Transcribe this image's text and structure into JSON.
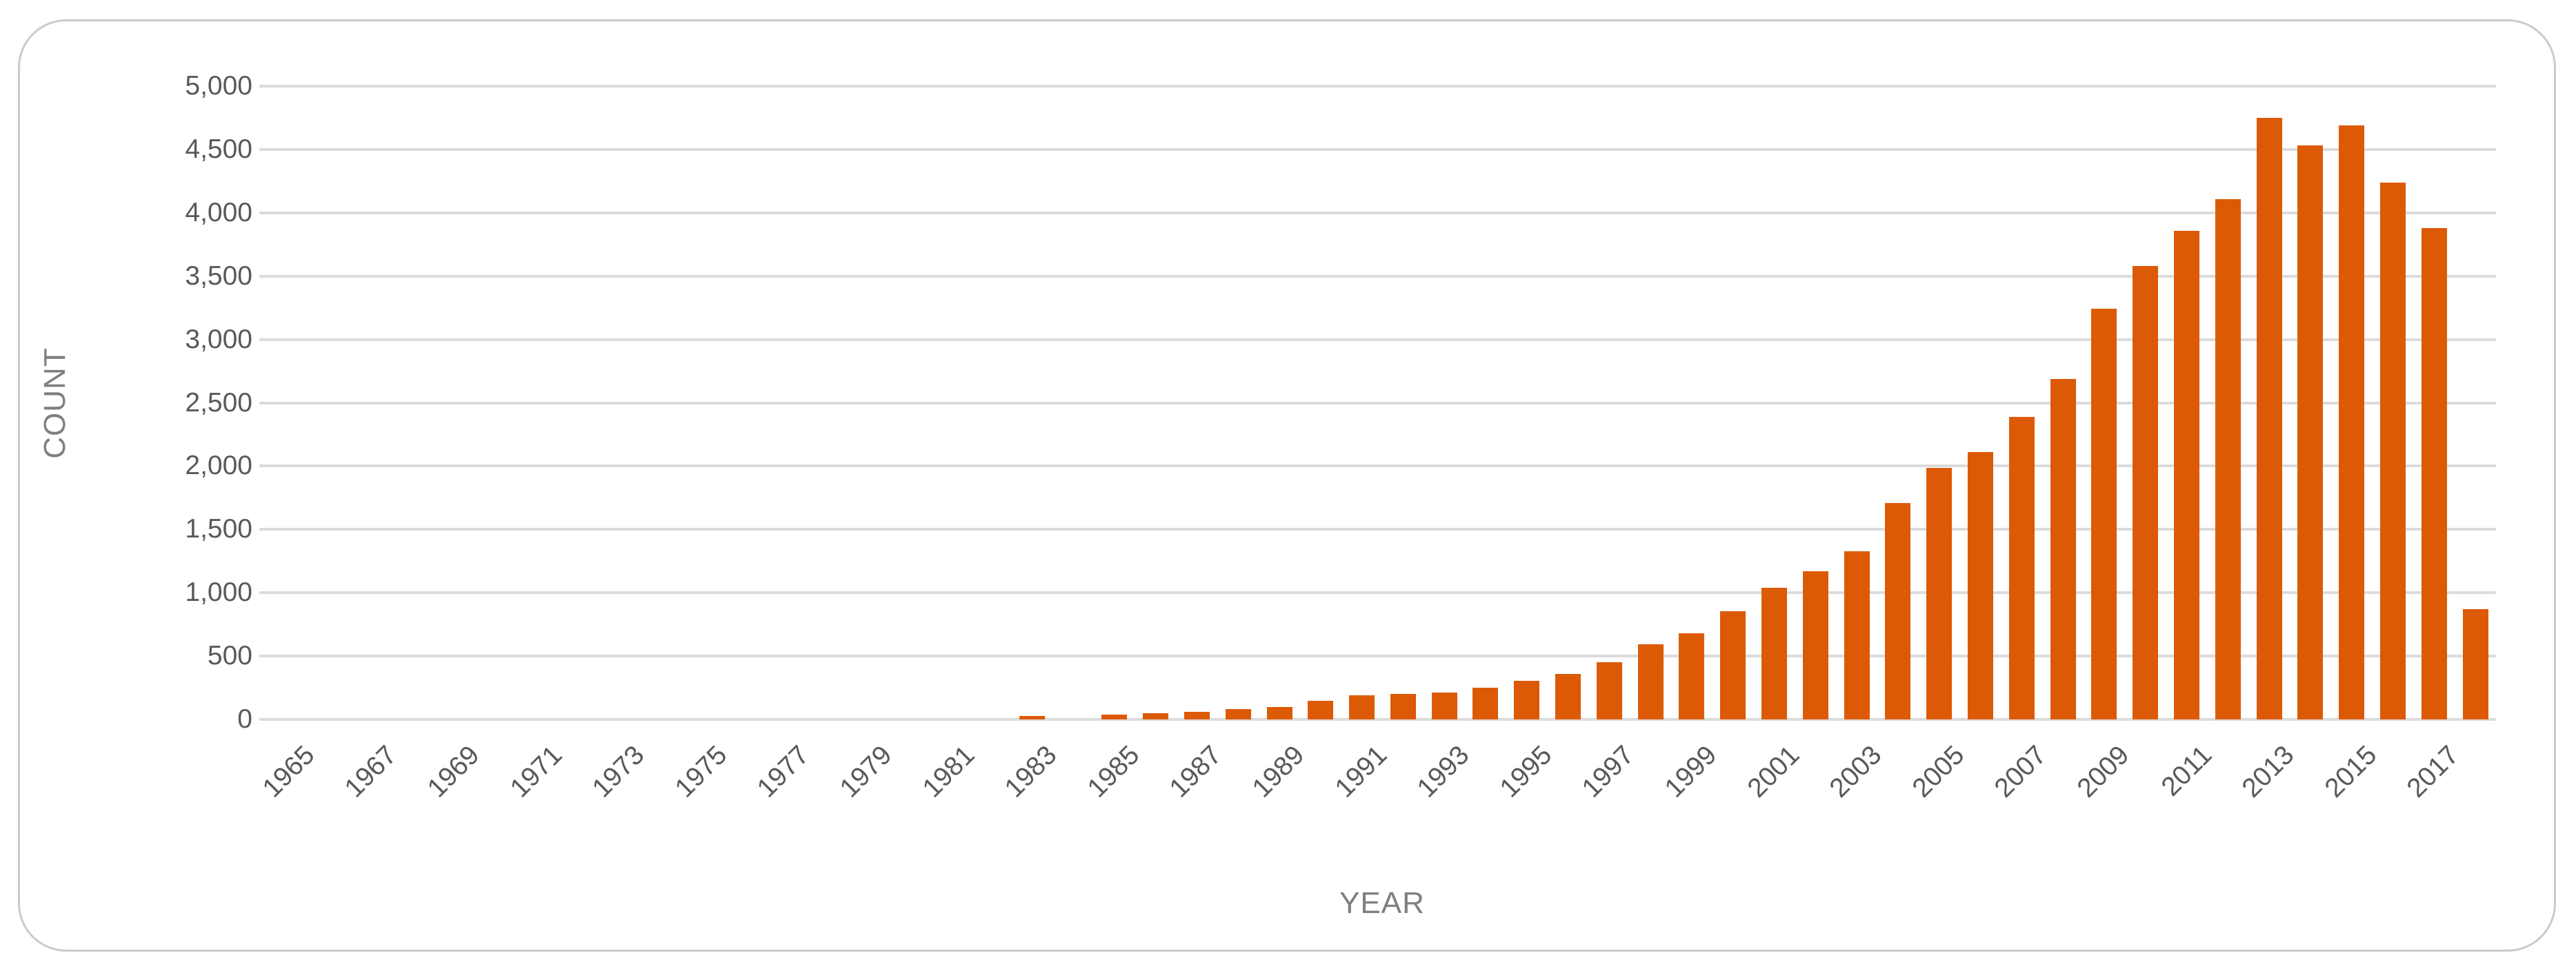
{
  "colors": {
    "bar": "#dc5a06",
    "gridline": "#dbdbdb",
    "tick_label": "#595959",
    "axis_title": "#7f7f7f",
    "card_border": "#cbcbcb",
    "background": "#ffffff"
  },
  "chart_data": {
    "type": "bar",
    "title": "",
    "xlabel": "YEAR",
    "ylabel": "COUNT",
    "ylim": [
      0,
      5000
    ],
    "y_tick_step": 500,
    "grid": true,
    "legend": "none",
    "categories": [
      1965,
      1966,
      1967,
      1968,
      1969,
      1970,
      1971,
      1972,
      1973,
      1974,
      1975,
      1976,
      1977,
      1978,
      1979,
      1980,
      1981,
      1982,
      1983,
      1984,
      1985,
      1986,
      1987,
      1988,
      1989,
      1990,
      1991,
      1992,
      1993,
      1994,
      1995,
      1996,
      1997,
      1998,
      1999,
      2000,
      2001,
      2002,
      2003,
      2004,
      2005,
      2006,
      2007,
      2008,
      2009,
      2010,
      2011,
      2012,
      2013,
      2014,
      2015,
      2016,
      2017,
      2018
    ],
    "values": [
      0,
      0,
      0,
      0,
      0,
      0,
      0,
      0,
      0,
      0,
      0,
      0,
      0,
      0,
      0,
      0,
      0,
      0,
      25,
      0,
      40,
      50,
      62,
      80,
      100,
      148,
      190,
      200,
      212,
      250,
      305,
      358,
      452,
      595,
      680,
      852,
      1040,
      1170,
      1330,
      1710,
      1985,
      2110,
      2390,
      2690,
      3240,
      3580,
      3860,
      4110,
      4750,
      4530,
      4690,
      4240,
      3880,
      870
    ],
    "x_axis_tick_labels": [
      "1965",
      "1967",
      "1969",
      "1971",
      "1973",
      "1975",
      "1977",
      "1979",
      "1981",
      "1983",
      "1985",
      "1987",
      "1989",
      "1991",
      "1993",
      "1995",
      "1997",
      "1999",
      "2001",
      "2003",
      "2005",
      "2007",
      "2009",
      "2011",
      "2013",
      "2015",
      "2017"
    ],
    "y_axis_tick_labels": [
      "0",
      "500",
      "1,000",
      "1,500",
      "2,000",
      "2,500",
      "3,000",
      "3,500",
      "4,000",
      "4,500",
      "5,000"
    ]
  }
}
